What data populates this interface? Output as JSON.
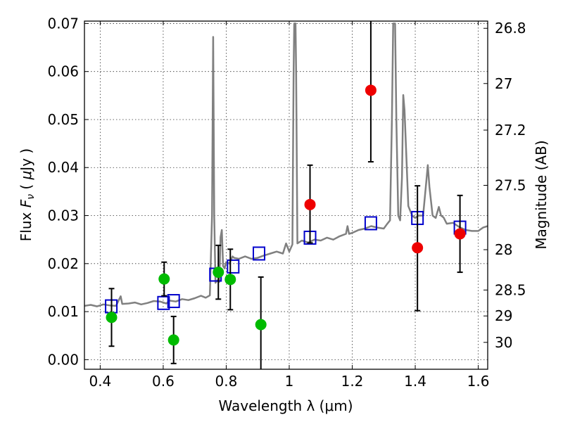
{
  "chart_data": {
    "type": "scatter",
    "xlabel": "Wavelength  λ (μm)",
    "ylabel": "Flux  F_ν  ( μJy )",
    "y2label": "Magnitude (AB)",
    "xlim": [
      0.35,
      1.63
    ],
    "ylim": [
      -0.002,
      0.0705
    ],
    "grid": true,
    "x_ticks": [
      0.4,
      0.6,
      0.8,
      1.0,
      1.2,
      1.4,
      1.6
    ],
    "x_tick_labels": [
      "0.4",
      "0.6",
      "0.8",
      "1",
      "1.2",
      "1.4",
      "1.6"
    ],
    "y_ticks": [
      0.0,
      0.01,
      0.02,
      0.03,
      0.04,
      0.05,
      0.06,
      0.07
    ],
    "y_tick_labels": [
      "0.00",
      "0.01",
      "0.02",
      "0.03",
      "0.04",
      "0.05",
      "0.06",
      "0.07"
    ],
    "y2_ticks": [
      {
        "label": "26.8",
        "flux": 0.069
      },
      {
        "label": "27",
        "flux": 0.0575
      },
      {
        "label": "27.2",
        "flux": 0.0478
      },
      {
        "label": "27.5",
        "flux": 0.0363
      },
      {
        "label": "28",
        "flux": 0.0229
      },
      {
        "label": "28.5",
        "flux": 0.0145
      },
      {
        "label": "29",
        "flux": 0.0091
      },
      {
        "label": "30",
        "flux": 0.0036
      }
    ],
    "series": [
      {
        "kind": "line",
        "color": "#808080",
        "points": [
          [
            0.35,
            0.0112
          ],
          [
            0.37,
            0.0114
          ],
          [
            0.39,
            0.0111
          ],
          [
            0.41,
            0.0115
          ],
          [
            0.43,
            0.0113
          ],
          [
            0.45,
            0.0112
          ],
          [
            0.465,
            0.0132
          ],
          [
            0.47,
            0.0116
          ],
          [
            0.49,
            0.0117
          ],
          [
            0.51,
            0.0119
          ],
          [
            0.53,
            0.0115
          ],
          [
            0.55,
            0.0118
          ],
          [
            0.57,
            0.0122
          ],
          [
            0.59,
            0.0121
          ],
          [
            0.61,
            0.0117
          ],
          [
            0.62,
            0.0123
          ],
          [
            0.64,
            0.0121
          ],
          [
            0.66,
            0.0126
          ],
          [
            0.68,
            0.0124
          ],
          [
            0.7,
            0.0128
          ],
          [
            0.72,
            0.0133
          ],
          [
            0.735,
            0.0129
          ],
          [
            0.748,
            0.0134
          ],
          [
            0.755,
            0.03
          ],
          [
            0.7585,
            0.0672
          ],
          [
            0.762,
            0.03
          ],
          [
            0.766,
            0.016
          ],
          [
            0.772,
            0.0165
          ],
          [
            0.778,
            0.0162
          ],
          [
            0.782,
            0.0255
          ],
          [
            0.786,
            0.027
          ],
          [
            0.79,
            0.0195
          ],
          [
            0.795,
            0.019
          ],
          [
            0.8,
            0.0203
          ],
          [
            0.81,
            0.02
          ],
          [
            0.82,
            0.0215
          ],
          [
            0.825,
            0.0212
          ],
          [
            0.84,
            0.021
          ],
          [
            0.86,
            0.0215
          ],
          [
            0.88,
            0.021
          ],
          [
            0.9,
            0.0212
          ],
          [
            0.92,
            0.0217
          ],
          [
            0.94,
            0.0221
          ],
          [
            0.96,
            0.0225
          ],
          [
            0.98,
            0.0221
          ],
          [
            0.99,
            0.0242
          ],
          [
            1.0,
            0.0225
          ],
          [
            1.01,
            0.024
          ],
          [
            1.014,
            0.06
          ],
          [
            1.016,
            0.07
          ],
          [
            1.02,
            0.07
          ],
          [
            1.022,
            0.06
          ],
          [
            1.026,
            0.0242
          ],
          [
            1.04,
            0.0248
          ],
          [
            1.06,
            0.0244
          ],
          [
            1.08,
            0.025
          ],
          [
            1.1,
            0.0248
          ],
          [
            1.12,
            0.0254
          ],
          [
            1.14,
            0.025
          ],
          [
            1.16,
            0.0257
          ],
          [
            1.18,
            0.0262
          ],
          [
            1.185,
            0.0278
          ],
          [
            1.19,
            0.0262
          ],
          [
            1.2,
            0.0264
          ],
          [
            1.22,
            0.027
          ],
          [
            1.24,
            0.0273
          ],
          [
            1.26,
            0.0278
          ],
          [
            1.28,
            0.0275
          ],
          [
            1.3,
            0.0273
          ],
          [
            1.31,
            0.0282
          ],
          [
            1.32,
            0.029
          ],
          [
            1.326,
            0.05
          ],
          [
            1.33,
            0.07
          ],
          [
            1.336,
            0.07
          ],
          [
            1.34,
            0.05
          ],
          [
            1.346,
            0.03
          ],
          [
            1.352,
            0.029
          ],
          [
            1.358,
            0.038
          ],
          [
            1.362,
            0.0551
          ],
          [
            1.366,
            0.052
          ],
          [
            1.372,
            0.042
          ],
          [
            1.378,
            0.032
          ],
          [
            1.39,
            0.03
          ],
          [
            1.4,
            0.0295
          ],
          [
            1.41,
            0.03
          ],
          [
            1.425,
            0.03
          ],
          [
            1.435,
            0.037
          ],
          [
            1.44,
            0.0405
          ],
          [
            1.445,
            0.036
          ],
          [
            1.455,
            0.03
          ],
          [
            1.465,
            0.0295
          ],
          [
            1.475,
            0.0318
          ],
          [
            1.482,
            0.03
          ],
          [
            1.49,
            0.0296
          ],
          [
            1.5,
            0.0283
          ],
          [
            1.52,
            0.0285
          ],
          [
            1.54,
            0.0276
          ],
          [
            1.56,
            0.027
          ],
          [
            1.58,
            0.0268
          ],
          [
            1.6,
            0.0268
          ],
          [
            1.615,
            0.0275
          ],
          [
            1.63,
            0.0278
          ]
        ]
      },
      {
        "kind": "squares",
        "color": "#0000cc",
        "points": [
          [
            0.435,
            0.0111
          ],
          [
            0.601,
            0.0118
          ],
          [
            0.633,
            0.0122
          ],
          [
            0.766,
            0.0177
          ],
          [
            0.822,
            0.0194
          ],
          [
            0.904,
            0.0221
          ],
          [
            1.066,
            0.0254
          ],
          [
            1.259,
            0.0284
          ],
          [
            1.407,
            0.0295
          ],
          [
            1.542,
            0.0275
          ]
        ]
      },
      {
        "kind": "dots",
        "color": "#00bb00",
        "points": [
          {
            "x": 0.436,
            "y": 0.0088,
            "lo": 0.0028,
            "hi": 0.0148
          },
          {
            "x": 0.603,
            "y": 0.0168,
            "lo": 0.0133,
            "hi": 0.0203
          },
          {
            "x": 0.633,
            "y": 0.0041,
            "lo": -0.0008,
            "hi": 0.009
          },
          {
            "x": 0.775,
            "y": 0.0182,
            "lo": 0.0126,
            "hi": 0.0238
          },
          {
            "x": 0.813,
            "y": 0.0167,
            "lo": 0.0104,
            "hi": 0.023
          },
          {
            "x": 0.91,
            "y": 0.0073,
            "lo": -0.0025,
            "hi": 0.0172
          }
        ]
      },
      {
        "kind": "dots",
        "color": "#ee0000",
        "points": [
          {
            "x": 1.066,
            "y": 0.0323,
            "lo": 0.0243,
            "hi": 0.0405
          },
          {
            "x": 1.259,
            "y": 0.0561,
            "lo": 0.0412,
            "hi": 0.071
          },
          {
            "x": 1.407,
            "y": 0.0233,
            "lo": 0.0102,
            "hi": 0.0362
          },
          {
            "x": 1.542,
            "y": 0.0262,
            "lo": 0.0182,
            "hi": 0.0342
          }
        ]
      }
    ]
  }
}
